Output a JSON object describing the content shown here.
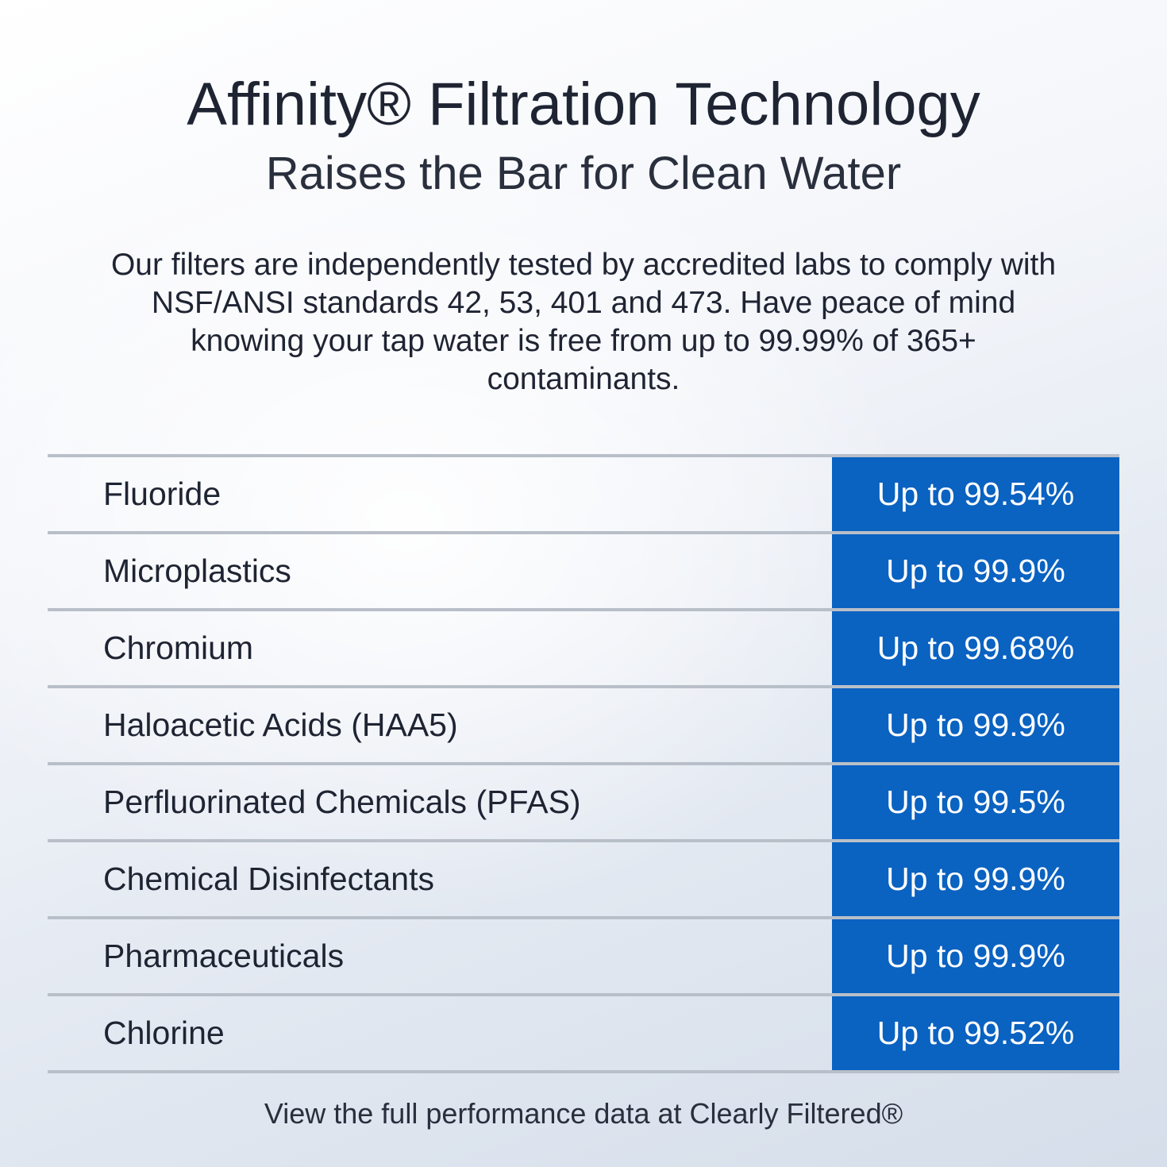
{
  "header": {
    "title": "Affinity® Filtration Technology",
    "subtitle": "Raises the Bar for Clean Water"
  },
  "intro": {
    "text": "Our filters are independently tested by accredited labs to comply with NSF/ANSI standards 42, 53, 401 and 473. Have peace of mind knowing your tap water is free from up to 99.99% of 365+ contaminants."
  },
  "contaminants": [
    {
      "name": "Fluoride",
      "reduction": "Up to 99.54%"
    },
    {
      "name": "Microplastics",
      "reduction": "Up to 99.9%"
    },
    {
      "name": "Chromium",
      "reduction": "Up to 99.68%"
    },
    {
      "name": "Haloacetic Acids (HAA5)",
      "reduction": "Up to 99.9%"
    },
    {
      "name": "Perfluorinated Chemicals (PFAS)",
      "reduction": "Up to 99.5%"
    },
    {
      "name": "Chemical Disinfectants",
      "reduction": "Up to 99.9%"
    },
    {
      "name": "Pharmaceuticals",
      "reduction": "Up to 99.9%"
    },
    {
      "name": "Chlorine",
      "reduction": "Up to 99.52%"
    }
  ],
  "footer": {
    "text": "View the full performance data at Clearly Filtered®"
  },
  "colors": {
    "accent": "#0a62c1",
    "text": "#1f2433",
    "divider": "#b9bfc8"
  }
}
